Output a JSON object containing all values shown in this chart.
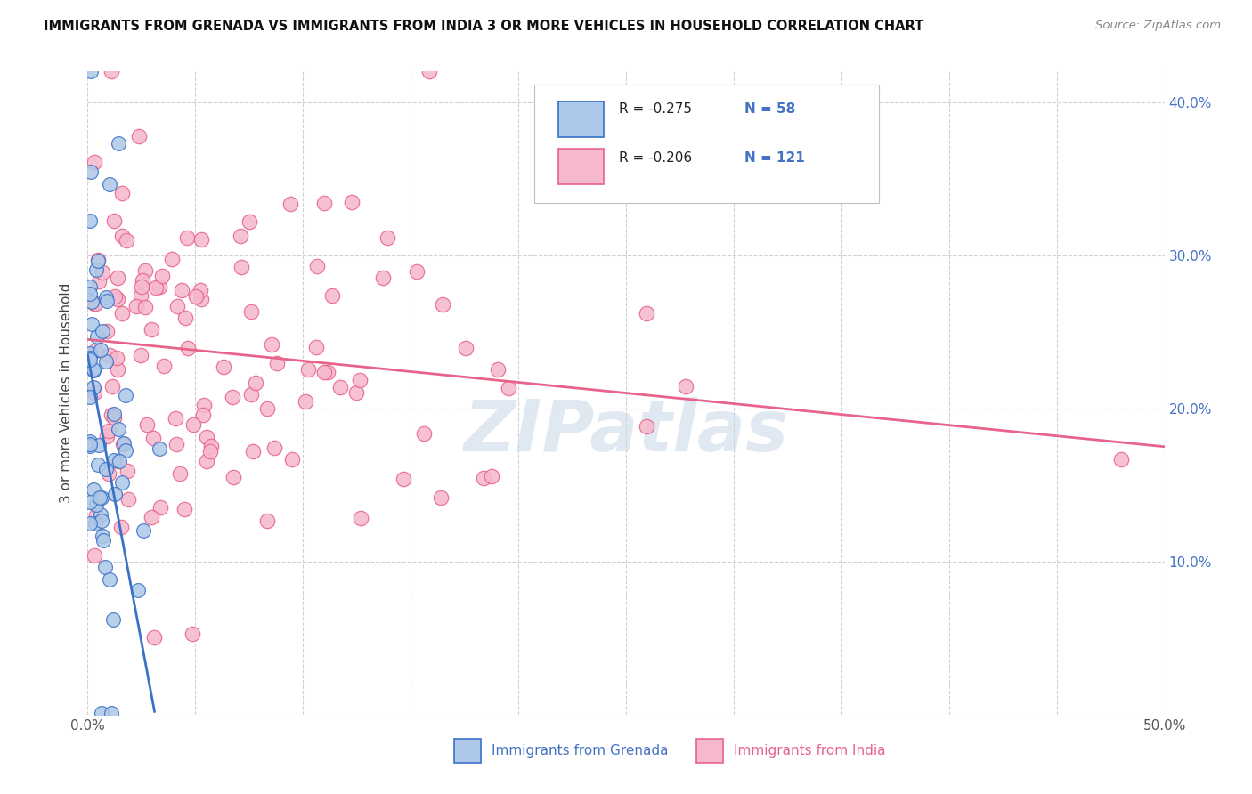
{
  "title": "IMMIGRANTS FROM GRENADA VS IMMIGRANTS FROM INDIA 3 OR MORE VEHICLES IN HOUSEHOLD CORRELATION CHART",
  "source": "Source: ZipAtlas.com",
  "ylabel": "3 or more Vehicles in Household",
  "xlim": [
    0.0,
    0.5
  ],
  "ylim": [
    0.0,
    0.42
  ],
  "legend_r_grenada": "-0.275",
  "legend_n_grenada": "58",
  "legend_r_india": "-0.206",
  "legend_n_india": "121",
  "color_grenada": "#adc8e8",
  "color_india": "#f5b8cc",
  "line_color_grenada": "#3a72c9",
  "line_color_india": "#e8638a",
  "watermark": "ZIPatlas",
  "background_color": "#ffffff",
  "grenada_slope": -7.5,
  "grenada_intercept": 0.235,
  "india_slope": -0.14,
  "india_intercept": 0.245
}
